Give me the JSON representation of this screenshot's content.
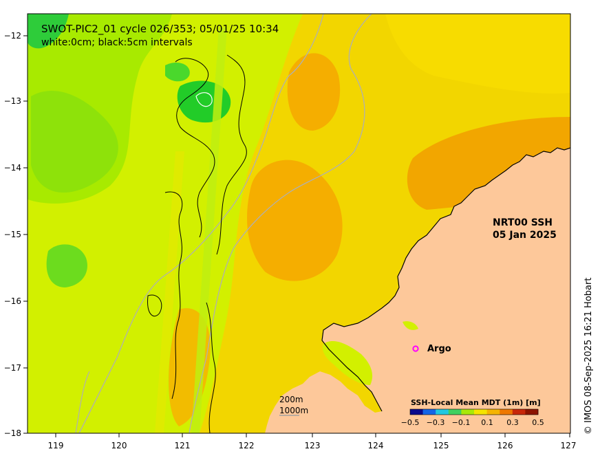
{
  "title_line1": "SWOT-PIC2_01 cycle 026/353; 05/01/25 10:34",
  "title_line2": "white:0cm; black:5cm intervals",
  "product_line1": "NRT00 SSH",
  "product_line2": "05 Jan 2025",
  "argo_label": "Argo",
  "depth_label_1": "200m",
  "depth_label_2": "1000m",
  "colorbar": {
    "title": "SSH-Local Mean MDT (1m) [m]",
    "ticks": [
      "−0.5",
      "−0.3",
      "−0.1",
      "0.1",
      "0.3",
      "0.5"
    ],
    "colors": [
      "#0a0a8c",
      "#1565e6",
      "#21c8e0",
      "#40d060",
      "#a8e80a",
      "#f5e400",
      "#f5b400",
      "#ee7800",
      "#c8280a",
      "#8c1400"
    ]
  },
  "axes": {
    "x_ticks": [
      "119",
      "120",
      "121",
      "122",
      "123",
      "124",
      "125",
      "126",
      "127"
    ],
    "y_ticks": [
      "−12",
      "−13",
      "−14",
      "−15",
      "−16",
      "−17",
      "−18"
    ]
  },
  "credit": "© IMOS 08-Sep-2025 16:21 Hobart",
  "colors": {
    "land": "#fdc89a",
    "field_yellow": "#f2d600",
    "field_lime": "#d2f000",
    "field_green": "#76e41a",
    "field_orange": "#f5ae00"
  }
}
